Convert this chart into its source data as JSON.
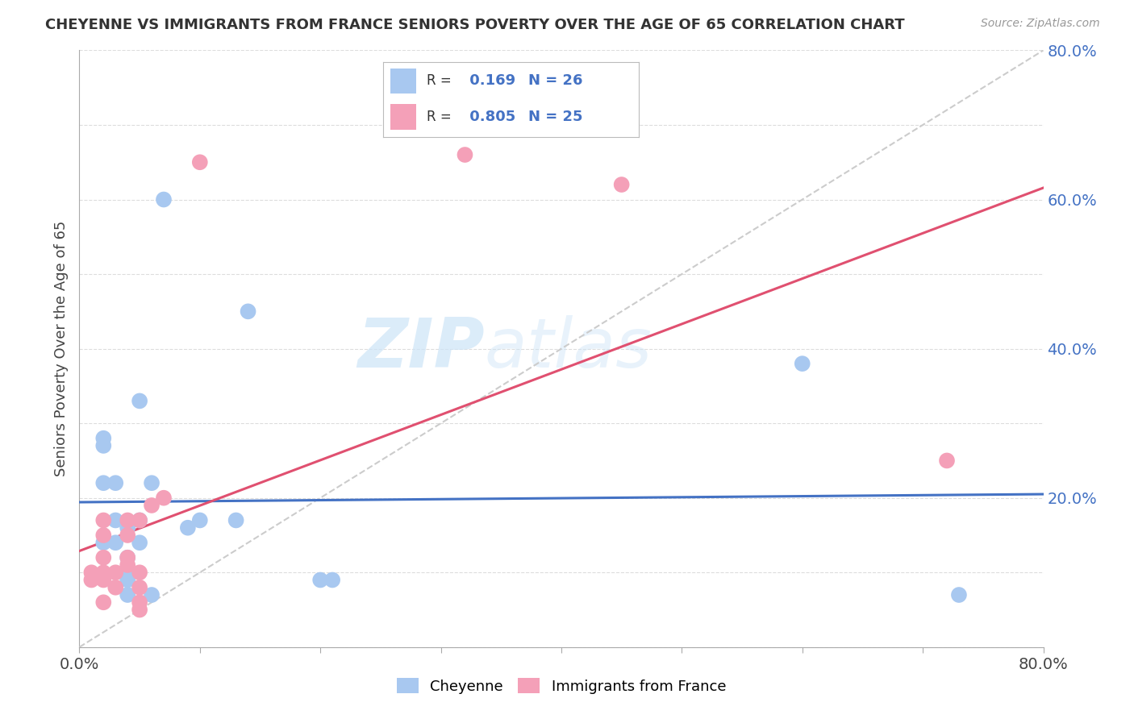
{
  "title": "CHEYENNE VS IMMIGRANTS FROM FRANCE SENIORS POVERTY OVER THE AGE OF 65 CORRELATION CHART",
  "source": "Source: ZipAtlas.com",
  "ylabel": "Seniors Poverty Over the Age of 65",
  "xlim": [
    0.0,
    0.8
  ],
  "ylim": [
    0.0,
    0.8
  ],
  "xticks": [
    0.0,
    0.1,
    0.2,
    0.3,
    0.4,
    0.5,
    0.6,
    0.7,
    0.8
  ],
  "yticks": [
    0.0,
    0.1,
    0.2,
    0.3,
    0.4,
    0.5,
    0.6,
    0.7,
    0.8
  ],
  "cheyenne_color": "#a8c8f0",
  "france_color": "#f4a0b8",
  "cheyenne_R": 0.169,
  "cheyenne_N": 26,
  "france_R": 0.805,
  "france_N": 25,
  "watermark_zip": "ZIP",
  "watermark_atlas": "atlas",
  "cheyenne_points": [
    [
      0.02,
      0.27
    ],
    [
      0.02,
      0.14
    ],
    [
      0.02,
      0.28
    ],
    [
      0.02,
      0.22
    ],
    [
      0.03,
      0.22
    ],
    [
      0.03,
      0.17
    ],
    [
      0.03,
      0.14
    ],
    [
      0.04,
      0.16
    ],
    [
      0.04,
      0.12
    ],
    [
      0.04,
      0.1
    ],
    [
      0.04,
      0.09
    ],
    [
      0.04,
      0.07
    ],
    [
      0.05,
      0.33
    ],
    [
      0.05,
      0.17
    ],
    [
      0.05,
      0.14
    ],
    [
      0.06,
      0.22
    ],
    [
      0.06,
      0.07
    ],
    [
      0.07,
      0.6
    ],
    [
      0.09,
      0.16
    ],
    [
      0.1,
      0.17
    ],
    [
      0.13,
      0.17
    ],
    [
      0.14,
      0.45
    ],
    [
      0.2,
      0.09
    ],
    [
      0.21,
      0.09
    ],
    [
      0.6,
      0.38
    ],
    [
      0.73,
      0.07
    ]
  ],
  "france_points": [
    [
      0.01,
      0.1
    ],
    [
      0.01,
      0.09
    ],
    [
      0.02,
      0.17
    ],
    [
      0.02,
      0.15
    ],
    [
      0.02,
      0.12
    ],
    [
      0.02,
      0.1
    ],
    [
      0.02,
      0.09
    ],
    [
      0.02,
      0.06
    ],
    [
      0.03,
      0.1
    ],
    [
      0.03,
      0.08
    ],
    [
      0.04,
      0.17
    ],
    [
      0.04,
      0.15
    ],
    [
      0.04,
      0.12
    ],
    [
      0.04,
      0.11
    ],
    [
      0.05,
      0.17
    ],
    [
      0.05,
      0.1
    ],
    [
      0.05,
      0.08
    ],
    [
      0.05,
      0.06
    ],
    [
      0.05,
      0.05
    ],
    [
      0.06,
      0.19
    ],
    [
      0.07,
      0.2
    ],
    [
      0.1,
      0.65
    ],
    [
      0.32,
      0.66
    ],
    [
      0.45,
      0.62
    ],
    [
      0.72,
      0.25
    ]
  ],
  "cheyenne_line_color": "#4472c4",
  "france_line_color": "#e05070",
  "trendline_ref_color": "#cccccc",
  "grid_color": "#dddddd",
  "legend_label_cheyenne": "Cheyenne",
  "legend_label_france": "Immigrants from France"
}
